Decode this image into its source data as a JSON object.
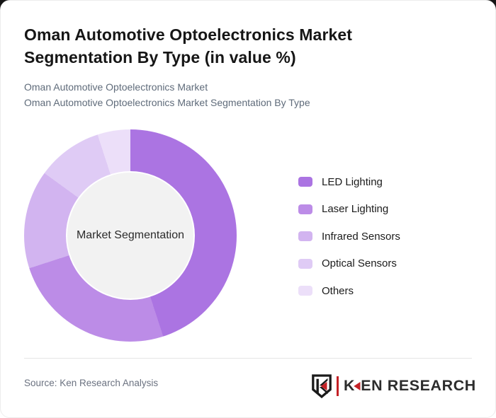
{
  "card": {
    "title": "Oman Automotive Optoelectronics Market Segmentation By Type (in value %)",
    "subtitle_line1": "Oman Automotive Optoelectronics Market",
    "subtitle_line2": "Oman Automotive Optoelectronics Market Segmentation By Type",
    "source": "Source: Ken Research Analysis",
    "logo": {
      "part1": "K",
      "part2": "EN RESEARCH",
      "red": "#c42126",
      "dark": "#1a1a1a"
    }
  },
  "chart_data": {
    "type": "pie",
    "variant": "donut",
    "title": "Oman Automotive Optoelectronics Market Segmentation By Type (in value %)",
    "center_label": "Market Segmentation",
    "categories": [
      "LED Lighting",
      "Laser Lighting",
      "Infrared Sensors",
      "Optical Sensors",
      "Others"
    ],
    "values": [
      45,
      25,
      15,
      10,
      5
    ],
    "unit": "value %",
    "colors": [
      "#ab74e2",
      "#bc8ce7",
      "#d2b4f0",
      "#dfcbf5",
      "#ecdff9"
    ],
    "start_angle_deg": 0,
    "direction": "clockwise",
    "legend_position": "right",
    "inner_circle_color": "#f2f2f2"
  }
}
